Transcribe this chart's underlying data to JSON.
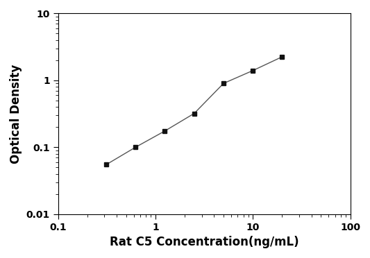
{
  "x": [
    0.313,
    0.625,
    1.25,
    2.5,
    5,
    10,
    20
  ],
  "y": [
    0.055,
    0.1,
    0.175,
    0.32,
    0.9,
    1.4,
    2.25
  ],
  "xlabel": "Rat C5 Concentration(ng/mL)",
  "ylabel": "Optical Density",
  "xlim": [
    0.1,
    100
  ],
  "ylim": [
    0.01,
    10
  ],
  "line_color": "#555555",
  "marker_color": "#111111",
  "marker": "s",
  "marker_size": 5,
  "linewidth": 1.0,
  "background_color": "#ffffff",
  "xticks": [
    0.1,
    1,
    10,
    100
  ],
  "yticks": [
    0.01,
    0.1,
    1,
    10
  ],
  "xtick_labels": [
    "0.1",
    "1",
    "10",
    "100"
  ],
  "ytick_labels": [
    "0.01",
    "0.1",
    "1",
    "10"
  ],
  "xlabel_fontsize": 12,
  "ylabel_fontsize": 12,
  "tick_labelsize": 10
}
